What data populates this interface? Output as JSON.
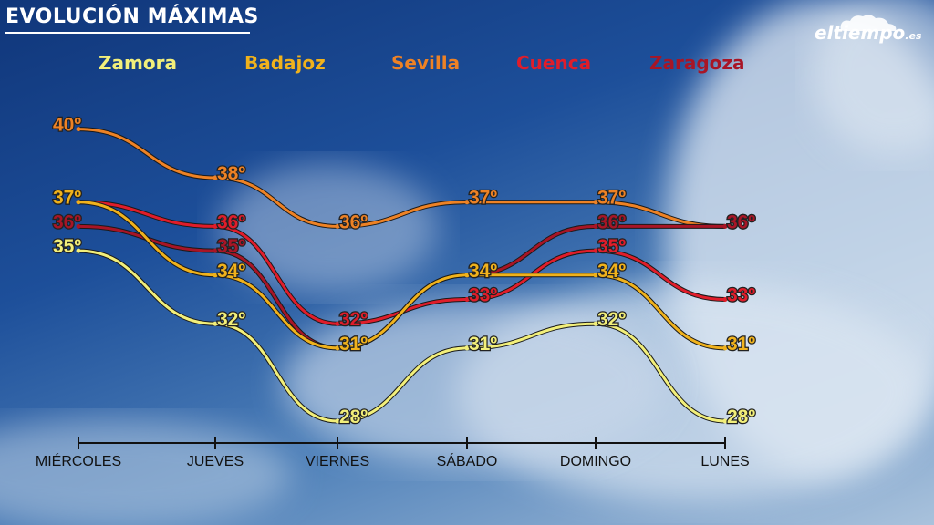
{
  "title": "EVOLUCIÓN MÁXIMAS",
  "logo": {
    "main": "eltiempo",
    "suffix": ".es"
  },
  "chart_data": {
    "type": "line",
    "categories": [
      "MIÉRCOLES",
      "JUEVES",
      "VIERNES",
      "SÁBADO",
      "DOMINGO",
      "LUNES"
    ],
    "unit": "º",
    "series": [
      {
        "name": "Zamora",
        "color": "#f2ef7a",
        "values": [
          35,
          32,
          28,
          31,
          32,
          28
        ]
      },
      {
        "name": "Badajoz",
        "color": "#f0b21c",
        "values": [
          37,
          34,
          31,
          34,
          34,
          31
        ]
      },
      {
        "name": "Sevilla",
        "color": "#ee8225",
        "values": [
          40,
          38,
          36,
          37,
          37,
          36
        ]
      },
      {
        "name": "Cuenca",
        "color": "#e01d2a",
        "values": [
          37,
          36,
          32,
          33,
          35,
          33
        ]
      },
      {
        "name": "Zaragoza",
        "color": "#a81526",
        "values": [
          36,
          35,
          31,
          34,
          36,
          36
        ]
      }
    ],
    "legend_position": "top",
    "grid": false
  }
}
